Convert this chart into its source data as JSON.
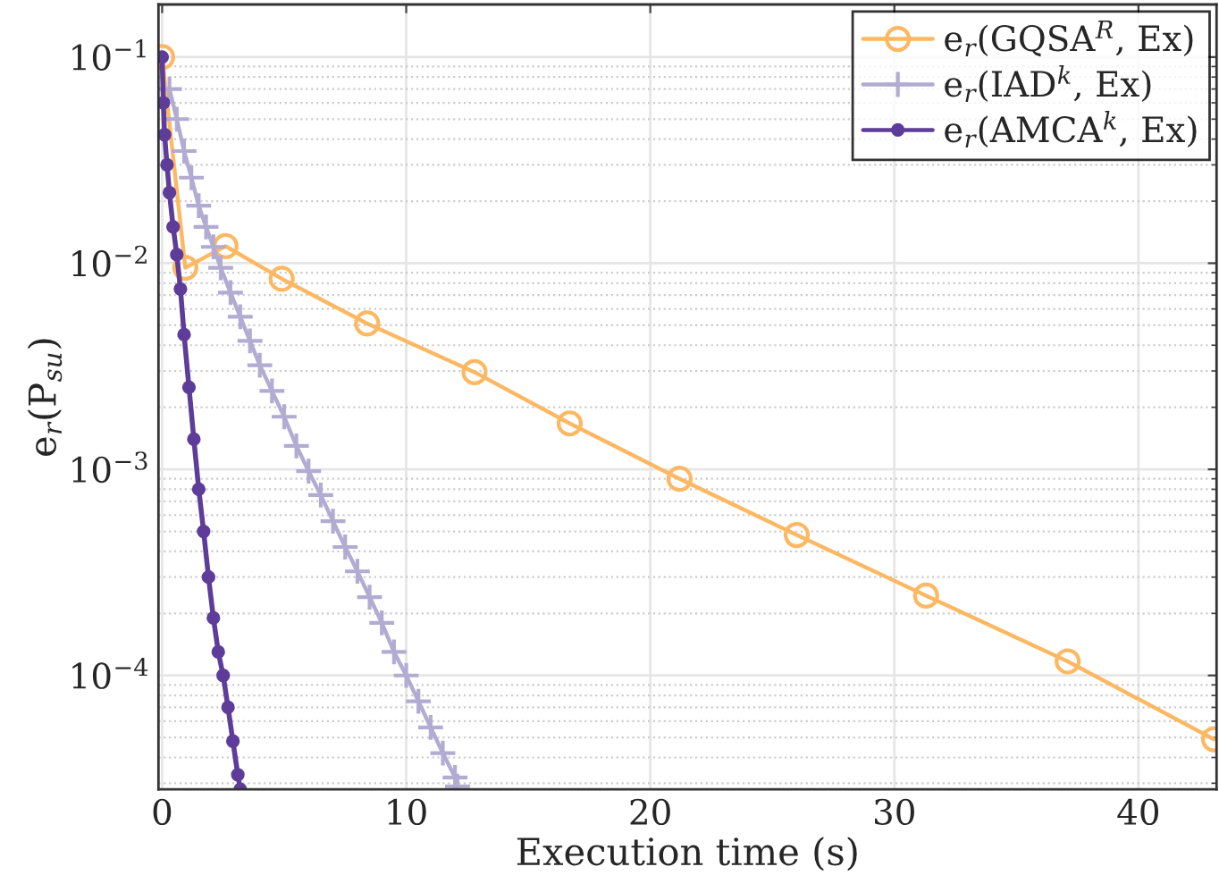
{
  "chart_data": {
    "type": "line",
    "xlabel": "Execution time (s)",
    "ylabel": "e$_{r}$(P$_{su}$)",
    "log": "y",
    "grid": true,
    "legend": "top right",
    "xlim": [
      -0.15,
      43.2
    ],
    "ylim": [
      2.8e-05,
      0.18
    ],
    "xticks": [
      0,
      10,
      20,
      30,
      40
    ],
    "yticks": [
      {
        "value": 0.0001,
        "label": "10$^{−4}$"
      },
      {
        "value": 0.001,
        "label": "10$^{−3}$"
      },
      {
        "value": 0.01,
        "label": "10$^{−2}$"
      },
      {
        "value": 0.1,
        "label": "10$^{−1}$"
      }
    ],
    "series": [
      {
        "name": "e$_{r}$(GQSA$^{R}$, Ex)",
        "color": "#fdb863",
        "marker": "circle",
        "x": [
          0,
          0.95,
          2.6,
          4.9,
          8.4,
          12.8,
          16.7,
          21.2,
          26.0,
          31.3,
          37.1,
          43.1
        ],
        "values": [
          0.1,
          0.0095,
          0.0121,
          0.0084,
          0.0051,
          0.00296,
          0.00167,
          0.0009,
          0.00048,
          0.000244,
          0.000117,
          4.9e-05
        ]
      },
      {
        "name": "e$_{r}$(IAD$^{k}$, Ex)",
        "color": "#b2abd2",
        "marker": "cross",
        "x": [
          0.3,
          0.6,
          0.9,
          1.2,
          1.5,
          1.8,
          2.1,
          2.4,
          2.8,
          3.2,
          3.6,
          4.0,
          4.5,
          5.0,
          5.5,
          6.0,
          6.5,
          7.0,
          7.5,
          8.0,
          8.5,
          9.0,
          9.5,
          10.0,
          10.5,
          11.0,
          11.5,
          12.0,
          12.1
        ],
        "values": [
          0.07,
          0.05,
          0.035,
          0.026,
          0.019,
          0.015,
          0.012,
          0.0095,
          0.0072,
          0.0055,
          0.0042,
          0.0032,
          0.0024,
          0.0018,
          0.0013,
          0.00098,
          0.00075,
          0.00056,
          0.00042,
          0.00032,
          0.00024,
          0.00018,
          0.00013,
          0.0001,
          7.5e-05,
          5.6e-05,
          4.2e-05,
          3.2e-05,
          2.9e-05
        ]
      },
      {
        "name": "e$_{r}$(AMCA$^{k}$, Ex)",
        "color": "#5e3c99",
        "marker": "circle",
        "x": [
          0,
          0.05,
          0.1,
          0.2,
          0.3,
          0.45,
          0.6,
          0.75,
          0.9,
          1.1,
          1.3,
          1.5,
          1.7,
          1.9,
          2.1,
          2.3,
          2.5,
          2.7,
          2.9,
          3.1,
          3.2
        ],
        "values": [
          0.1,
          0.06,
          0.042,
          0.03,
          0.022,
          0.015,
          0.011,
          0.0075,
          0.0045,
          0.0025,
          0.0014,
          0.0008,
          0.0005,
          0.0003,
          0.00019,
          0.00013,
          0.0001,
          7e-05,
          4.8e-05,
          3.3e-05,
          2.8e-05
        ]
      }
    ]
  }
}
